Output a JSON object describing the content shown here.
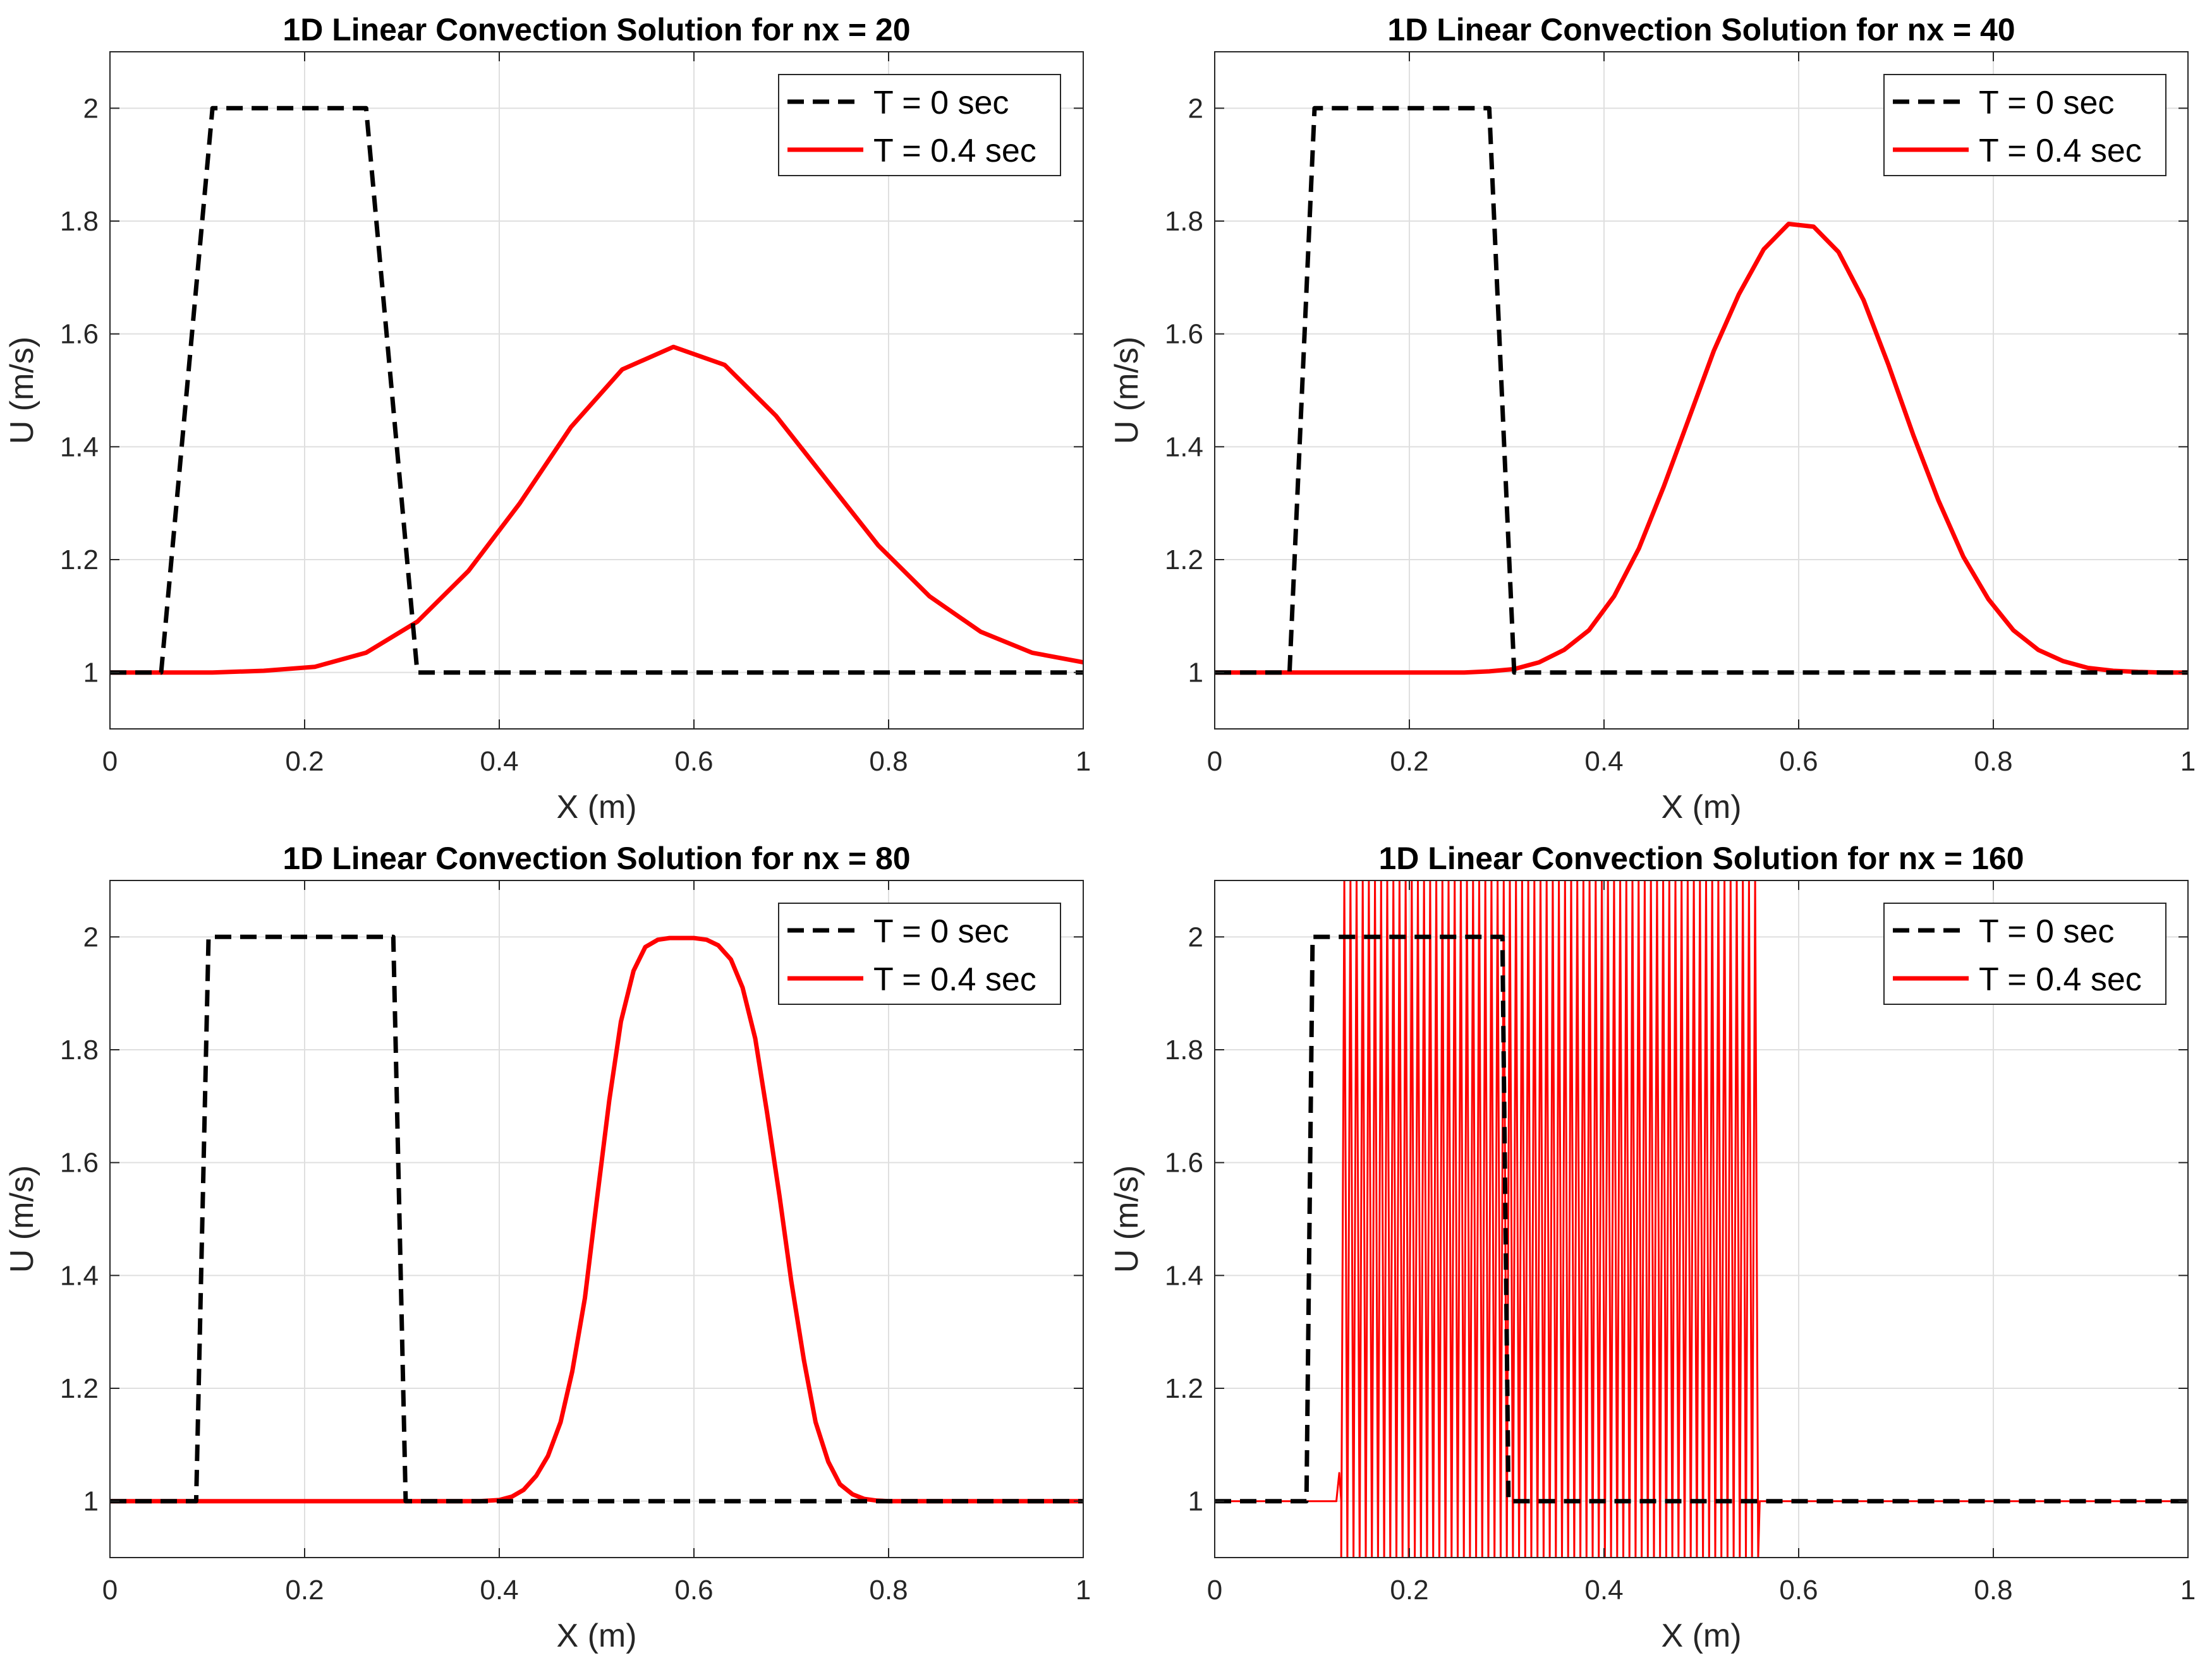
{
  "figure": {
    "background": "#e6e6e6"
  },
  "colors": {
    "initial": "#000000",
    "final": "#ff0000",
    "grid": "#dfdfdf",
    "axes": "#262626"
  },
  "chart_data": [
    {
      "type": "line",
      "title": "1D Linear Convection Solution for nx = 20",
      "xlabel": "X (m)",
      "ylabel": "U (m/s)",
      "xlim": [
        0,
        1
      ],
      "ylim": [
        0.9,
        2.1
      ],
      "xticks": [
        0,
        0.2,
        0.4,
        0.6,
        0.8,
        1
      ],
      "xtick_labels": [
        "0",
        "0.2",
        "0.4",
        "0.6",
        "0.8",
        "1"
      ],
      "yticks": [
        1,
        1.2,
        1.4,
        1.6,
        1.8,
        2
      ],
      "ytick_labels": [
        "1",
        "1.2",
        "1.4",
        "1.6",
        "1.8",
        "2"
      ],
      "grid": true,
      "legend_position": "top-right",
      "series": [
        {
          "name": "T = 0 sec",
          "style": "dashed",
          "x": [
            0,
            0.0526,
            0.1053,
            0.2632,
            0.3158,
            1
          ],
          "y": [
            1,
            1,
            2,
            2,
            1,
            1
          ]
        },
        {
          "name": "T = 0.4 sec",
          "style": "solid",
          "x": [
            0,
            0.0526,
            0.1053,
            0.1579,
            0.2105,
            0.2632,
            0.3158,
            0.3684,
            0.4211,
            0.4737,
            0.5263,
            0.5789,
            0.6316,
            0.6842,
            0.7368,
            0.7895,
            0.8421,
            0.8947,
            0.9474,
            1.0
          ],
          "y": [
            1,
            1,
            1,
            1.003,
            1.01,
            1.035,
            1.09,
            1.18,
            1.3,
            1.435,
            1.537,
            1.577,
            1.545,
            1.455,
            1.34,
            1.225,
            1.135,
            1.072,
            1.035,
            1.018
          ]
        }
      ]
    },
    {
      "type": "line",
      "title": "1D Linear Convection Solution for nx = 40",
      "xlabel": "X (m)",
      "ylabel": "U (m/s)",
      "xlim": [
        0,
        1
      ],
      "ylim": [
        0.9,
        2.1
      ],
      "xticks": [
        0,
        0.2,
        0.4,
        0.6,
        0.8,
        1
      ],
      "xtick_labels": [
        "0",
        "0.2",
        "0.4",
        "0.6",
        "0.8",
        "1"
      ],
      "yticks": [
        1,
        1.2,
        1.4,
        1.6,
        1.8,
        2
      ],
      "ytick_labels": [
        "1",
        "1.2",
        "1.4",
        "1.6",
        "1.8",
        "2"
      ],
      "grid": true,
      "legend_position": "top-right",
      "series": [
        {
          "name": "T = 0 sec",
          "style": "dashed",
          "x": [
            0,
            0.0769,
            0.1026,
            0.2821,
            0.3077,
            1
          ],
          "y": [
            1,
            1,
            2,
            2,
            1,
            1
          ]
        },
        {
          "name": "T = 0.4 sec",
          "style": "solid",
          "x": [
            0,
            0.0256,
            0.0513,
            0.0769,
            0.1026,
            0.1282,
            0.1538,
            0.1795,
            0.2051,
            0.2308,
            0.2564,
            0.2821,
            0.3077,
            0.3333,
            0.359,
            0.3846,
            0.4103,
            0.4359,
            0.4615,
            0.4872,
            0.5128,
            0.5385,
            0.5641,
            0.5897,
            0.6154,
            0.641,
            0.6667,
            0.6923,
            0.7179,
            0.7436,
            0.7692,
            0.7949,
            0.8205,
            0.8462,
            0.8718,
            0.8974,
            0.9231,
            0.9487,
            0.9744,
            1.0
          ],
          "y": [
            1,
            1,
            1,
            1,
            1,
            1,
            1,
            1,
            1,
            1,
            1,
            1.002,
            1.006,
            1.018,
            1.04,
            1.075,
            1.135,
            1.22,
            1.33,
            1.45,
            1.57,
            1.67,
            1.75,
            1.795,
            1.79,
            1.745,
            1.66,
            1.545,
            1.42,
            1.305,
            1.205,
            1.13,
            1.075,
            1.04,
            1.02,
            1.008,
            1.003,
            1.001,
            1,
            1
          ]
        }
      ]
    },
    {
      "type": "line",
      "title": "1D Linear Convection Solution for nx = 80",
      "xlabel": "X (m)",
      "ylabel": "U (m/s)",
      "xlim": [
        0,
        1
      ],
      "ylim": [
        0.9,
        2.1
      ],
      "xticks": [
        0,
        0.2,
        0.4,
        0.6,
        0.8,
        1
      ],
      "xtick_labels": [
        "0",
        "0.2",
        "0.4",
        "0.6",
        "0.8",
        "1"
      ],
      "yticks": [
        1,
        1.2,
        1.4,
        1.6,
        1.8,
        2
      ],
      "ytick_labels": [
        "1",
        "1.2",
        "1.4",
        "1.6",
        "1.8",
        "2"
      ],
      "grid": true,
      "legend_position": "top-right",
      "series": [
        {
          "name": "T = 0 sec",
          "style": "dashed",
          "x": [
            0,
            0.0886,
            0.1013,
            0.2911,
            0.3038,
            1
          ],
          "y": [
            1,
            1,
            2,
            2,
            1,
            1
          ]
        },
        {
          "name": "T = 0.4 sec",
          "style": "solid",
          "x": [
            0,
            0.38,
            0.4,
            0.413,
            0.425,
            0.438,
            0.45,
            0.463,
            0.475,
            0.488,
            0.5,
            0.513,
            0.525,
            0.538,
            0.55,
            0.563,
            0.575,
            0.588,
            0.6,
            0.613,
            0.625,
            0.638,
            0.65,
            0.663,
            0.675,
            0.688,
            0.7,
            0.713,
            0.725,
            0.738,
            0.75,
            0.763,
            0.775,
            0.788,
            0.8,
            0.82,
            1
          ],
          "y": [
            1,
            1,
            1.002,
            1.008,
            1.02,
            1.045,
            1.08,
            1.14,
            1.23,
            1.36,
            1.53,
            1.71,
            1.85,
            1.94,
            1.982,
            1.995,
            1.998,
            1.998,
            1.998,
            1.995,
            1.985,
            1.96,
            1.91,
            1.82,
            1.69,
            1.54,
            1.39,
            1.25,
            1.14,
            1.07,
            1.03,
            1.012,
            1.004,
            1.001,
            1,
            1,
            1
          ]
        }
      ]
    },
    {
      "type": "line",
      "title": "1D Linear Convection Solution for nx = 160",
      "xlabel": "X (m)",
      "ylabel": "U (m/s)",
      "xlim": [
        0,
        1
      ],
      "ylim": [
        0.9,
        2.1
      ],
      "xticks": [
        0,
        0.2,
        0.4,
        0.6,
        0.8,
        1
      ],
      "xtick_labels": [
        "0",
        "0.2",
        "0.4",
        "0.6",
        "0.8",
        "1"
      ],
      "yticks": [
        1,
        1.2,
        1.4,
        1.6,
        1.8,
        2
      ],
      "ytick_labels": [
        "1",
        "1.2",
        "1.4",
        "1.6",
        "1.8",
        "2"
      ],
      "grid": true,
      "legend_position": "top-right",
      "series": [
        {
          "name": "T = 0 sec",
          "style": "dashed",
          "x": [
            0,
            0.0943,
            0.1006,
            0.2956,
            0.3019,
            1
          ],
          "y": [
            1,
            1,
            2,
            2,
            1,
            1
          ]
        },
        {
          "name": "T = 0.4 sec",
          "style": "solid",
          "oscillation": {
            "x_start": 0.13,
            "x_end": 0.56,
            "period": 0.0063,
            "low": 0.9,
            "high": 2.1
          },
          "x": [
            0,
            0.125,
            0.128,
            0.13,
            0.56,
            0.565,
            1
          ],
          "y": [
            1,
            1,
            1.05,
            1,
            1,
            1,
            1
          ]
        }
      ]
    }
  ]
}
